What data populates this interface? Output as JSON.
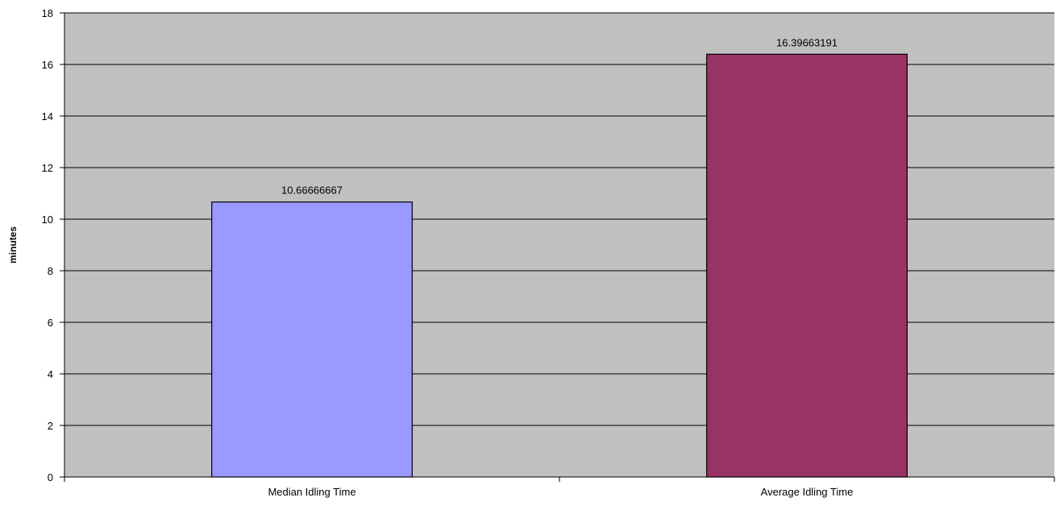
{
  "chart_data": {
    "type": "bar",
    "title": "",
    "xlabel": "",
    "ylabel": "minutes",
    "ylim": [
      0,
      18
    ],
    "ytick_step": 2,
    "grid": true,
    "legend": "none",
    "categories": [
      "Median Idling Time",
      "Average Idling Time"
    ],
    "values": [
      10.66666667,
      16.39663191
    ],
    "data_labels": [
      "10.66666667",
      "16.39663191"
    ],
    "bar_colors": [
      "#9999ff",
      "#993366"
    ],
    "plot_background": "#c0c0c0"
  }
}
